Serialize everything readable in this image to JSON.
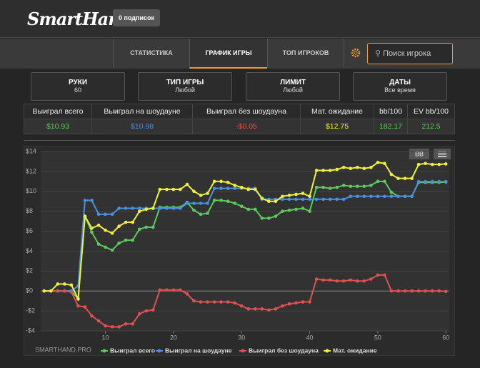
{
  "header": {
    "logo": "SmartHand",
    "subscriptions": "0 подписок"
  },
  "nav": {
    "tabs": [
      "СТАТИСТИКА",
      "ГРАФИК ИГРЫ",
      "ТОП ИГРОКОВ"
    ],
    "search": "Поиск игрока"
  },
  "filters": [
    {
      "label": "РУКИ",
      "value": "60"
    },
    {
      "label": "ТИП ИГРЫ",
      "value": "Любой"
    },
    {
      "label": "ЛИМИТ",
      "value": "Любой"
    },
    {
      "label": "ДАТЫ",
      "value": "Все время"
    }
  ],
  "table": {
    "headers": [
      "Выиграл всего",
      "Выиграл на шоудауне",
      "Выиграл без шоудауна",
      "Мат. ожидание",
      "bb/100",
      "EV bb/100"
    ],
    "values": [
      "$10.93",
      "$10.98",
      "-$0.05",
      "$12.75",
      "182.17",
      "212.5"
    ]
  },
  "chart_data": {
    "type": "line",
    "watermark": "SMARTHAND.PRO",
    "unit_button": "BB",
    "x": [
      1,
      2,
      3,
      4,
      5,
      6,
      7,
      8,
      9,
      10,
      11,
      12,
      13,
      14,
      15,
      16,
      17,
      18,
      19,
      20,
      21,
      22,
      23,
      24,
      25,
      26,
      27,
      28,
      29,
      30,
      31,
      32,
      33,
      34,
      35,
      36,
      37,
      38,
      39,
      40,
      41,
      42,
      43,
      44,
      45,
      46,
      47,
      48,
      49,
      50,
      51,
      52,
      53,
      54,
      55,
      56,
      57,
      58,
      59,
      60
    ],
    "xlim": [
      0.5,
      60.5
    ],
    "xticks": [
      10,
      20,
      30,
      40,
      50,
      60
    ],
    "ylim": [
      -4,
      14
    ],
    "yticks": [
      {
        "value": -4,
        "label": "-$4"
      },
      {
        "value": -2,
        "label": "-$2"
      },
      {
        "value": 0,
        "label": "$0"
      },
      {
        "value": 2,
        "label": "$2"
      },
      {
        "value": 4,
        "label": "$4"
      },
      {
        "value": 6,
        "label": "$6"
      },
      {
        "value": 8,
        "label": "$8"
      },
      {
        "value": 10,
        "label": "$10"
      },
      {
        "value": 12,
        "label": "$12"
      },
      {
        "value": 14,
        "label": "$14"
      }
    ],
    "grid": true,
    "series": [
      {
        "name": "Выиграл всего",
        "color": "#5ccb5c",
        "values": [
          0,
          0,
          0,
          0,
          0,
          -0.8,
          7.5,
          5.9,
          4.7,
          4.4,
          4.1,
          4.8,
          5.1,
          5.1,
          6.2,
          6.4,
          6.4,
          8.4,
          8.4,
          8.4,
          8.4,
          8.9,
          8.1,
          7.7,
          7.8,
          9.1,
          9.1,
          9.0,
          8.8,
          8.5,
          8.2,
          8.2,
          7.3,
          7.3,
          7.5,
          8.0,
          8.1,
          8.2,
          8.3,
          8.0,
          10.4,
          10.4,
          10.3,
          10.4,
          10.6,
          10.5,
          10.5,
          10.5,
          10.6,
          11.0,
          11.0,
          9.9,
          9.5,
          9.5,
          9.5,
          10.9,
          10.9,
          10.9,
          10.9,
          10.93
        ]
      },
      {
        "name": "Выиграл на шоудауне",
        "color": "#4a8fe0",
        "values": [
          0,
          0,
          0,
          0,
          0,
          0.5,
          9.1,
          9.1,
          7.7,
          7.7,
          7.7,
          8.3,
          8.3,
          8.3,
          8.3,
          8.3,
          8.3,
          8.3,
          8.3,
          8.3,
          8.3,
          8.8,
          8.8,
          8.8,
          8.8,
          10.3,
          10.3,
          10.3,
          10.3,
          10.3,
          10.3,
          10.3,
          9.2,
          9.2,
          9.2,
          9.2,
          9.2,
          9.2,
          9.2,
          9.2,
          9.2,
          9.2,
          9.2,
          9.2,
          9.2,
          9.5,
          9.5,
          9.5,
          9.5,
          9.5,
          9.5,
          9.5,
          9.5,
          9.5,
          9.5,
          10.98,
          10.98,
          10.98,
          10.98,
          10.98
        ]
      },
      {
        "name": "Выиграл без шоудауна",
        "color": "#e05252",
        "values": [
          0,
          0,
          0,
          0,
          -0.1,
          -1.5,
          -1.6,
          -2.5,
          -3.0,
          -3.5,
          -3.6,
          -3.6,
          -3.3,
          -3.3,
          -2.3,
          -2.0,
          -1.9,
          0.1,
          0.1,
          0.1,
          0.1,
          -0.3,
          -1.0,
          -1.1,
          -1.1,
          -1.1,
          -1.1,
          -1.1,
          -1.2,
          -1.5,
          -1.8,
          -1.8,
          -1.8,
          -1.9,
          -1.8,
          -1.5,
          -1.3,
          -1.2,
          -1.1,
          -1.1,
          1.2,
          1.1,
          1.1,
          1.0,
          1.0,
          1.1,
          1.0,
          1.0,
          1.2,
          1.6,
          1.6,
          0,
          0,
          0,
          0,
          0,
          0,
          0,
          0,
          -0.05
        ]
      },
      {
        "name": "Мат. ожидание",
        "color": "#f0f03c",
        "values": [
          0,
          0,
          0.7,
          0.7,
          0.6,
          -0.8,
          7.5,
          6.3,
          6.6,
          6.1,
          5.8,
          6.5,
          6.9,
          6.9,
          8.0,
          8.2,
          8.3,
          10.2,
          10.2,
          10.2,
          10.2,
          10.7,
          10.0,
          9.6,
          9.8,
          11.0,
          11.0,
          10.9,
          10.6,
          10.4,
          10.2,
          10.2,
          9.3,
          9.0,
          9.0,
          9.5,
          9.6,
          9.7,
          9.8,
          9.5,
          12.1,
          12.1,
          12.1,
          12.2,
          12.4,
          12.3,
          12.4,
          12.3,
          12.4,
          12.9,
          12.8,
          11.7,
          11.3,
          11.3,
          11.3,
          12.7,
          12.8,
          12.7,
          12.7,
          12.75
        ]
      }
    ]
  }
}
